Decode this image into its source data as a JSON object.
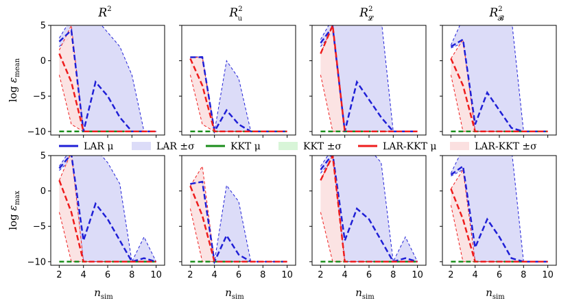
{
  "chart_data": {
    "type": "line",
    "layout": "2 rows x 4 columns of subplots",
    "x_label_text": "n",
    "x_label_sub": "sim",
    "x": [
      2,
      3,
      4,
      5,
      6,
      7,
      8,
      9,
      10
    ],
    "xticks": [
      "2",
      "4",
      "6",
      "8",
      "10"
    ],
    "xlim": [
      1.3,
      10.7
    ],
    "ylim": [
      -10.5,
      5
    ],
    "yticks": [
      "5",
      "0",
      "−5",
      "−10"
    ],
    "ytick_values": [
      5,
      0,
      -5,
      -10
    ],
    "column_titles": [
      {
        "base": "R",
        "sup": "2",
        "sub": ""
      },
      {
        "base": "R",
        "sup": "2",
        "sub": "u"
      },
      {
        "base": "R",
        "sup": "2",
        "sub": "𝓛"
      },
      {
        "base": "R",
        "sup": "2",
        "sub": "𝓑"
      }
    ],
    "row_labels": [
      {
        "prefix": "log ",
        "symbol": "ε",
        "sub": "mean"
      },
      {
        "prefix": "log ",
        "symbol": "ε",
        "sub": "max"
      }
    ],
    "legend": [
      {
        "label": "LAR μ",
        "kind": "line",
        "color": "#1f1fd6"
      },
      {
        "label": "LAR ±σ",
        "kind": "patch",
        "color": "#dcdcf8"
      },
      {
        "label": "KKT μ",
        "kind": "line",
        "color": "#1a8c1a"
      },
      {
        "label": "KKT ±σ",
        "kind": "patch",
        "color": "#d8f5d8"
      },
      {
        "label": "LAR-KKT μ",
        "kind": "line",
        "color": "#ee1c1c"
      },
      {
        "label": "LAR-KKT ±σ",
        "kind": "patch",
        "color": "#fbe0e0"
      }
    ],
    "colors": {
      "lar": "#1f1fd6",
      "lar_fill": "#dcdcf8",
      "kkt": "#1a8c1a",
      "larkkt": "#ee1c1c",
      "larkkt_fill": "#fbe0e0"
    },
    "panels": [
      {
        "row": 0,
        "col": 0,
        "lar_mean": [
          2.7,
          4.0,
          -10,
          -10,
          -10,
          -10,
          -10,
          -10,
          -10
        ],
        "lar_mean_inner": [
          2.7,
          4.3,
          -10,
          -3,
          -5,
          -8,
          -10,
          -10,
          -10
        ],
        "lar_upper": [
          3.2,
          6,
          6,
          6,
          4,
          2,
          -2,
          -10,
          -10
        ],
        "lar_lower": [
          2.0,
          3.5,
          -10,
          -10,
          -10,
          -10,
          -10,
          -10,
          -10
        ],
        "kkt_mean": [
          -10,
          -10,
          -10,
          -10,
          -10,
          -10,
          -10,
          -10,
          -10
        ],
        "larkkt_mean": [
          1.0,
          -3.0,
          -10,
          -10,
          -10,
          -10,
          -10,
          -10,
          -10
        ],
        "larkkt_upper": [
          1.5,
          5.0,
          -10,
          -10,
          -10,
          -10,
          -10,
          -10,
          -10
        ],
        "larkkt_lower": [
          -2.0,
          -9.0,
          -10,
          -10,
          -10,
          -10,
          -10,
          -10,
          -10
        ]
      },
      {
        "row": 0,
        "col": 1,
        "lar_mean": [
          0.5,
          0.5,
          -10,
          -10,
          -10,
          -10,
          -10,
          -10,
          -10
        ],
        "lar_mean_inner": [
          0.5,
          0.5,
          -10,
          -7,
          -9,
          -10,
          -10,
          -10,
          -10
        ],
        "lar_upper": [
          0.5,
          0.6,
          -10,
          0,
          -2.5,
          -10,
          -10,
          -10,
          -10
        ],
        "lar_lower": [
          0.5,
          0.4,
          -10,
          -10,
          -10,
          -10,
          -10,
          -10,
          -10
        ],
        "kkt_mean": [
          -10,
          -10,
          -10,
          -10,
          -10,
          -10,
          -10,
          -10,
          -10
        ],
        "larkkt_mean": [
          0.3,
          -3.5,
          -10,
          -10,
          -10,
          -10,
          -10,
          -10,
          -10
        ],
        "larkkt_upper": [
          0.5,
          0.5,
          -10,
          -10,
          -10,
          -10,
          -10,
          -10,
          -10
        ],
        "larkkt_lower": [
          -2.0,
          -9.0,
          -10,
          -10,
          -10,
          -10,
          -10,
          -10,
          -10
        ]
      },
      {
        "row": 0,
        "col": 2,
        "lar_mean": [
          2.5,
          4.5,
          -10,
          -10,
          -10,
          -10,
          -10,
          -10,
          -10
        ],
        "lar_mean_inner": [
          2.5,
          4.8,
          -10,
          -3,
          -5.5,
          -8,
          -10,
          -10,
          -10
        ],
        "lar_upper": [
          3.0,
          6,
          6,
          6,
          6,
          6,
          -10,
          -10,
          -10
        ],
        "lar_lower": [
          2.0,
          4.0,
          -10,
          -10,
          -10,
          -10,
          -10,
          -10,
          -10
        ],
        "kkt_mean": [
          -10,
          -10,
          -10,
          -10,
          -10,
          -10,
          -10,
          -10,
          -10
        ],
        "larkkt_mean": [
          1.0,
          5.0,
          -10,
          -10,
          -10,
          -10,
          -10,
          -10,
          -10
        ],
        "larkkt_upper": [
          1.0,
          5.0,
          -10,
          -10,
          -10,
          -10,
          -10,
          -10,
          -10
        ],
        "larkkt_lower": [
          -2.0,
          -10,
          -10,
          -10,
          -10,
          -10,
          -10,
          -10,
          -10
        ]
      },
      {
        "row": 0,
        "col": 3,
        "lar_mean": [
          2.0,
          2.8,
          -10,
          -10,
          -10,
          -10,
          -10,
          -10,
          -10
        ],
        "lar_mean_inner": [
          2.0,
          3.0,
          -9,
          -4.5,
          -7,
          -9.5,
          -10,
          -10,
          -10
        ],
        "lar_upper": [
          2.2,
          6,
          6,
          6,
          6,
          6,
          -10,
          -10,
          -10
        ],
        "lar_lower": [
          1.8,
          2.5,
          -10,
          -10,
          -10,
          -10,
          -10,
          -10,
          -10
        ],
        "kkt_mean": [
          -10,
          -10,
          -10,
          -10,
          -10,
          -10,
          -10,
          -10,
          -10
        ],
        "larkkt_mean": [
          0.3,
          -3.5,
          -10,
          -10,
          -10,
          -10,
          -10,
          -10,
          -10
        ],
        "larkkt_upper": [
          0.3,
          3.0,
          -10,
          -10,
          -10,
          -10,
          -10,
          -10,
          -10
        ],
        "larkkt_lower": [
          -2.0,
          -10,
          -10,
          -10,
          -10,
          -10,
          -10,
          -10,
          -10
        ]
      },
      {
        "row": 1,
        "col": 0,
        "lar_mean": [
          3.2,
          5.0,
          -7.0,
          -10,
          -10,
          -10,
          -10,
          -9,
          -10
        ],
        "lar_mean_inner": [
          3.2,
          5.2,
          -7.0,
          -1.8,
          -4,
          -7,
          -10,
          -9.5,
          -10
        ],
        "lar_upper": [
          3.5,
          6,
          6,
          6,
          4,
          1,
          -10,
          -6.5,
          -10
        ],
        "lar_lower": [
          2.9,
          4.5,
          -10,
          -10,
          -10,
          -10,
          -10,
          -10,
          -10
        ],
        "kkt_mean": [
          -10,
          -10,
          -10,
          -10,
          -10,
          -10,
          -10,
          -10,
          -10
        ],
        "larkkt_mean": [
          1.5,
          -3.0,
          -10,
          -10,
          -10,
          -10,
          -10,
          -10,
          -10
        ],
        "larkkt_upper": [
          1.5,
          5.5,
          -10,
          -10,
          -10,
          -10,
          -10,
          -10,
          -10
        ],
        "larkkt_lower": [
          -3.0,
          -10,
          -10,
          -10,
          -10,
          -10,
          -10,
          -10,
          -10
        ]
      },
      {
        "row": 1,
        "col": 1,
        "lar_mean": [
          1.0,
          1.3,
          -10,
          -10,
          -10,
          -10,
          -10,
          -10,
          -10
        ],
        "lar_mean_inner": [
          1.0,
          1.3,
          -10,
          -6.3,
          -9,
          -10,
          -10,
          -10,
          -10
        ],
        "lar_upper": [
          1.0,
          1.4,
          -10,
          0.8,
          -1.5,
          -10,
          -10,
          -10,
          -10
        ],
        "lar_lower": [
          1.0,
          1.2,
          -10,
          -10,
          -10,
          -10,
          -10,
          -10,
          -10
        ],
        "kkt_mean": [
          -10,
          -10,
          -10,
          -10,
          -10,
          -10,
          -10,
          -10,
          -10
        ],
        "larkkt_mean": [
          0.7,
          -3.5,
          -10,
          -10,
          -10,
          -10,
          -10,
          -10,
          -10
        ],
        "larkkt_upper": [
          0.7,
          3.5,
          -10,
          -10,
          -10,
          -10,
          -10,
          -10,
          -10
        ],
        "larkkt_lower": [
          -2.5,
          -10,
          -10,
          -10,
          -10,
          -10,
          -10,
          -10,
          -10
        ]
      },
      {
        "row": 1,
        "col": 2,
        "lar_mean": [
          3.0,
          5.0,
          -7.0,
          -10,
          -10,
          -10,
          -10,
          -9,
          -10
        ],
        "lar_mean_inner": [
          3.0,
          5.2,
          -7.0,
          -2.5,
          -4,
          -7,
          -10,
          -9.5,
          -10
        ],
        "lar_upper": [
          3.5,
          6,
          6,
          6,
          6,
          4,
          -10,
          -6.5,
          -10
        ],
        "lar_lower": [
          2.5,
          4.5,
          -10,
          -10,
          -10,
          -10,
          -10,
          -10,
          -10
        ],
        "kkt_mean": [
          -10,
          -10,
          -10,
          -10,
          -10,
          -10,
          -10,
          -10,
          -10
        ],
        "larkkt_mean": [
          1.5,
          5.0,
          -10,
          -10,
          -10,
          -10,
          -10,
          -10,
          -10
        ],
        "larkkt_upper": [
          1.5,
          5.0,
          -10,
          -10,
          -10,
          -10,
          -10,
          -10,
          -10
        ],
        "larkkt_lower": [
          -3.0,
          -10,
          -10,
          -10,
          -10,
          -10,
          -10,
          -10,
          -10
        ]
      },
      {
        "row": 1,
        "col": 3,
        "lar_mean": [
          2.3,
          3.2,
          -10,
          -10,
          -10,
          -10,
          -10,
          -10,
          -10
        ],
        "lar_mean_inner": [
          2.3,
          3.5,
          -8.0,
          -4.0,
          -6.5,
          -9.5,
          -10,
          -10,
          -10
        ],
        "lar_upper": [
          2.5,
          6,
          6,
          6,
          6,
          6,
          -10,
          -10,
          -10
        ],
        "lar_lower": [
          2.1,
          3.0,
          -10,
          -10,
          -10,
          -10,
          -10,
          -10,
          -10
        ],
        "kkt_mean": [
          -10,
          -10,
          -10,
          -10,
          -10,
          -10,
          -10,
          -10,
          -10
        ],
        "larkkt_mean": [
          0.3,
          -4.0,
          -10,
          -10,
          -10,
          -10,
          -10,
          -10,
          -10
        ],
        "larkkt_upper": [
          0.3,
          3.0,
          -10,
          -10,
          -10,
          -10,
          -10,
          -10,
          -10
        ],
        "larkkt_lower": [
          -2.0,
          -10,
          -10,
          -10,
          -10,
          -10,
          -10,
          -10,
          -10
        ]
      }
    ]
  }
}
